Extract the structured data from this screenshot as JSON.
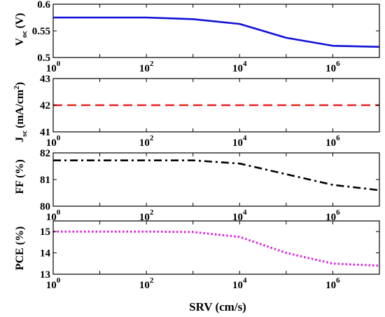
{
  "chart_data": [
    {
      "type": "line",
      "xscale": "log",
      "xlim": [
        1,
        10000000
      ],
      "ylim": [
        0.5,
        0.6
      ],
      "yticks": [
        "0.5",
        "0.55",
        "0.6"
      ],
      "ylabel_main": "V",
      "ylabel_sub": "oc",
      "ylabel_unit": "(V)",
      "series": [
        {
          "color": "#1010d8",
          "dash": "solid",
          "x": [
            1,
            100,
            1000,
            10000,
            100000,
            1000000,
            10000000
          ],
          "y": [
            0.575,
            0.575,
            0.572,
            0.563,
            0.537,
            0.522,
            0.52
          ]
        }
      ]
    },
    {
      "type": "line",
      "xscale": "log",
      "xlim": [
        1,
        10000000
      ],
      "ylim": [
        41,
        43
      ],
      "yticks": [
        "41",
        "42",
        "43"
      ],
      "ylabel_main": "J",
      "ylabel_sub": "sc",
      "ylabel_unit": "(mA/cm",
      "ylabel_unit_sup": "2",
      "ylabel_unit_end": ")",
      "series": [
        {
          "color": "#e82020",
          "dash": "dashed",
          "x": [
            1,
            10000000
          ],
          "y": [
            42,
            42
          ]
        }
      ]
    },
    {
      "type": "line",
      "xscale": "log",
      "xlim": [
        1,
        10000000
      ],
      "ylim": [
        80,
        82
      ],
      "yticks": [
        "80",
        "81",
        "82"
      ],
      "ylabel_main": "FF (%)",
      "series": [
        {
          "color": "#000000",
          "dash": "dashdot",
          "x": [
            1,
            100,
            1000,
            10000,
            100000,
            1000000,
            10000000
          ],
          "y": [
            81.72,
            81.72,
            81.72,
            81.6,
            81.2,
            80.8,
            80.6
          ]
        }
      ]
    },
    {
      "type": "line",
      "xscale": "log",
      "xlim": [
        1,
        10000000
      ],
      "ylim": [
        13,
        15.5
      ],
      "yticks": [
        "13",
        "14",
        "15"
      ],
      "ylabel_main": "PCE (%)",
      "xlabel": "SRV (cm/s)",
      "series": [
        {
          "color": "#e020e0",
          "dash": "dotted",
          "x": [
            1,
            100,
            1000,
            10000,
            100000,
            1000000,
            10000000
          ],
          "y": [
            15,
            15,
            14.98,
            14.75,
            14,
            13.5,
            13.4
          ]
        }
      ]
    }
  ],
  "xticks": [
    {
      "base": "10",
      "exp": "0",
      "value": 1
    },
    {
      "base": "10",
      "exp": "2",
      "value": 100
    },
    {
      "base": "10",
      "exp": "4",
      "value": 10000
    },
    {
      "base": "10",
      "exp": "6",
      "value": 1000000
    }
  ]
}
